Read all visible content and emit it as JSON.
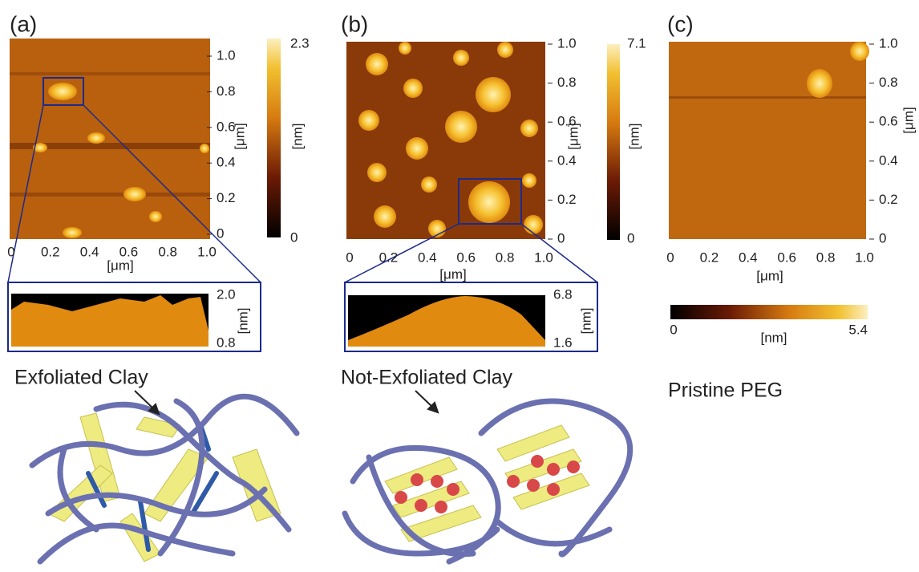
{
  "panels": [
    {
      "label": "(a)",
      "x_ticks": [
        "0",
        "0.2",
        "0.4",
        "0.6",
        "0.8",
        "1.0"
      ],
      "y_ticks": [
        "0",
        "0.2",
        "0.4",
        "0.6",
        "0.8",
        "1.0"
      ],
      "x_axis_label": "[μm]",
      "y_axis_label": "[μm]",
      "colorbar": {
        "max": "2.3",
        "min": "0",
        "label": "[nm]"
      },
      "profile": {
        "max": "2.0",
        "min": "0.8",
        "label": "[nm]"
      },
      "caption": "Exfoliated Clay"
    },
    {
      "label": "(b)",
      "x_ticks": [
        "0",
        "0.2",
        "0.4",
        "0.6",
        "0.8",
        "1.0"
      ],
      "y_ticks": [
        "0",
        "0.2",
        "0.4",
        "0.6",
        "0.8",
        "1.0"
      ],
      "x_axis_label": "[μm]",
      "y_axis_label": "[μm]",
      "colorbar": {
        "max": "7.1",
        "min": "0",
        "label": "[nm]"
      },
      "profile": {
        "max": "6.8",
        "min": "1.6",
        "label": "[nm]"
      },
      "caption": "Not-Exfoliated Clay"
    },
    {
      "label": "(c)",
      "x_ticks": [
        "0",
        "0.2",
        "0.4",
        "0.6",
        "0.8",
        "1.0"
      ],
      "y_ticks": [
        "0",
        "0.2",
        "0.4",
        "0.6",
        "0.8",
        "1.0"
      ],
      "x_axis_label": "[μm]",
      "y_axis_label": "[μm]",
      "colorbar": {
        "max": "5.4",
        "min": "0",
        "label": "[nm]"
      },
      "caption": "Pristine PEG"
    }
  ]
}
